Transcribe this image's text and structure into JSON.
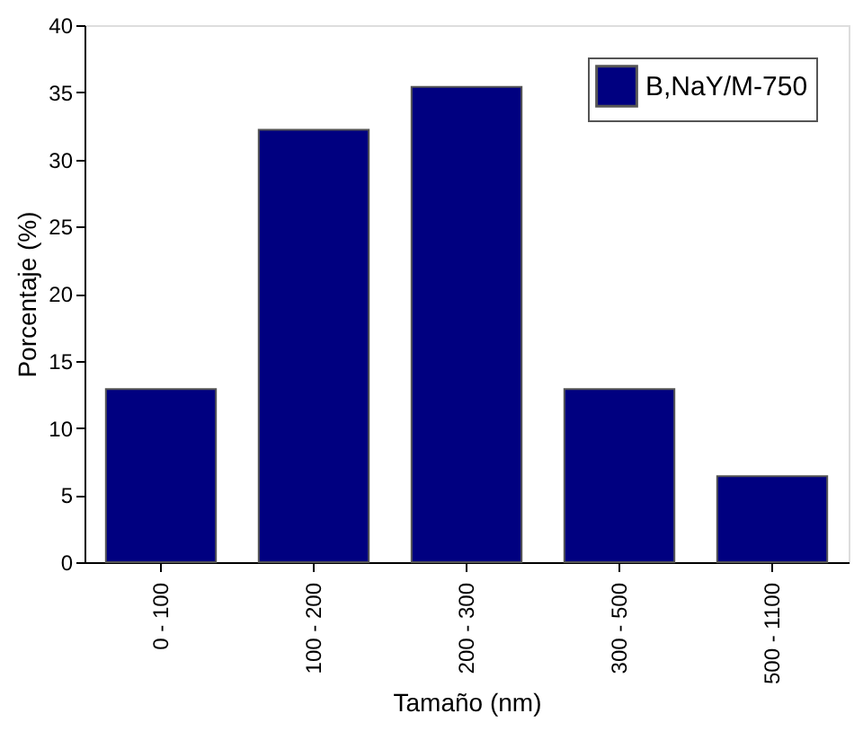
{
  "chart_data": {
    "type": "bar",
    "xlabel": "Tamaño (nm)",
    "ylabel": "Porcentaje (%)",
    "categories": [
      "0 - 100",
      "100 - 200",
      "200 - 300",
      "300 - 500",
      "500 - 1100"
    ],
    "series": [
      {
        "name": "B,NaY/M-750",
        "color": "#000080",
        "values": [
          12.9,
          32.2,
          35.4,
          12.9,
          6.4
        ]
      }
    ],
    "ylim": [
      0,
      40
    ],
    "yticks": [
      0,
      5,
      10,
      15,
      20,
      25,
      30,
      35,
      40
    ],
    "grid": false,
    "legend": "top right"
  }
}
